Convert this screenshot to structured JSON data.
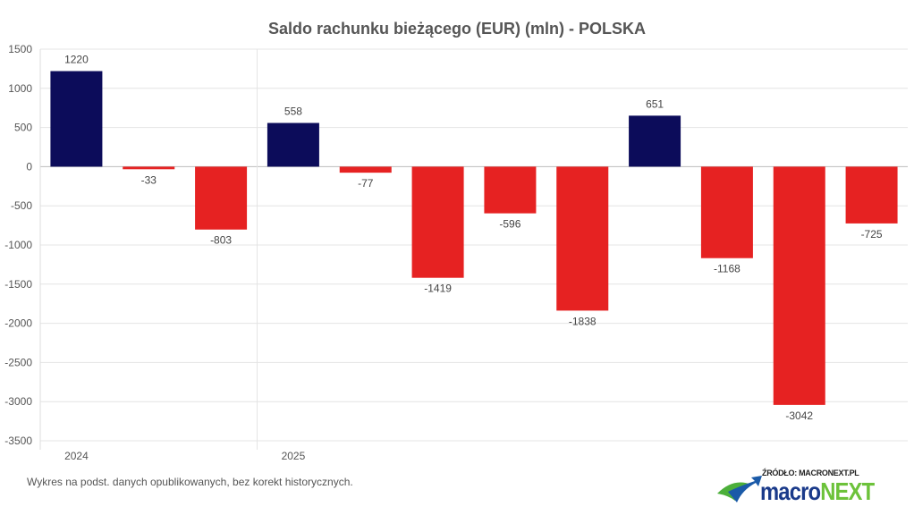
{
  "chart_data": {
    "type": "bar",
    "title": "Saldo rachunku bieżącego (EUR) (mln) - POLSKA",
    "xlabel": "",
    "ylabel": "",
    "ylim": [
      -3500,
      1500
    ],
    "yticks": [
      1500,
      1000,
      500,
      0,
      -500,
      -1000,
      -1500,
      -2000,
      -2500,
      -3000,
      -3500
    ],
    "categories": [
      "2024",
      "",
      "",
      "2025",
      "",
      "",
      "",
      "",
      "",
      "",
      "",
      ""
    ],
    "values": [
      1220,
      -33,
      -803,
      558,
      -77,
      -1419,
      -596,
      -1838,
      651,
      -1168,
      -3042,
      -725
    ],
    "grid": true,
    "colors": {
      "positive": "#0c0c5a",
      "negative": "#e62222"
    }
  },
  "footer": {
    "note": "Wykres na podst. danych opublikowanych, bez korekt historycznych.",
    "source": "ŹRÓDŁO: MACRONEXT.PL",
    "brand_a": "macro",
    "brand_b": "NEXT"
  }
}
